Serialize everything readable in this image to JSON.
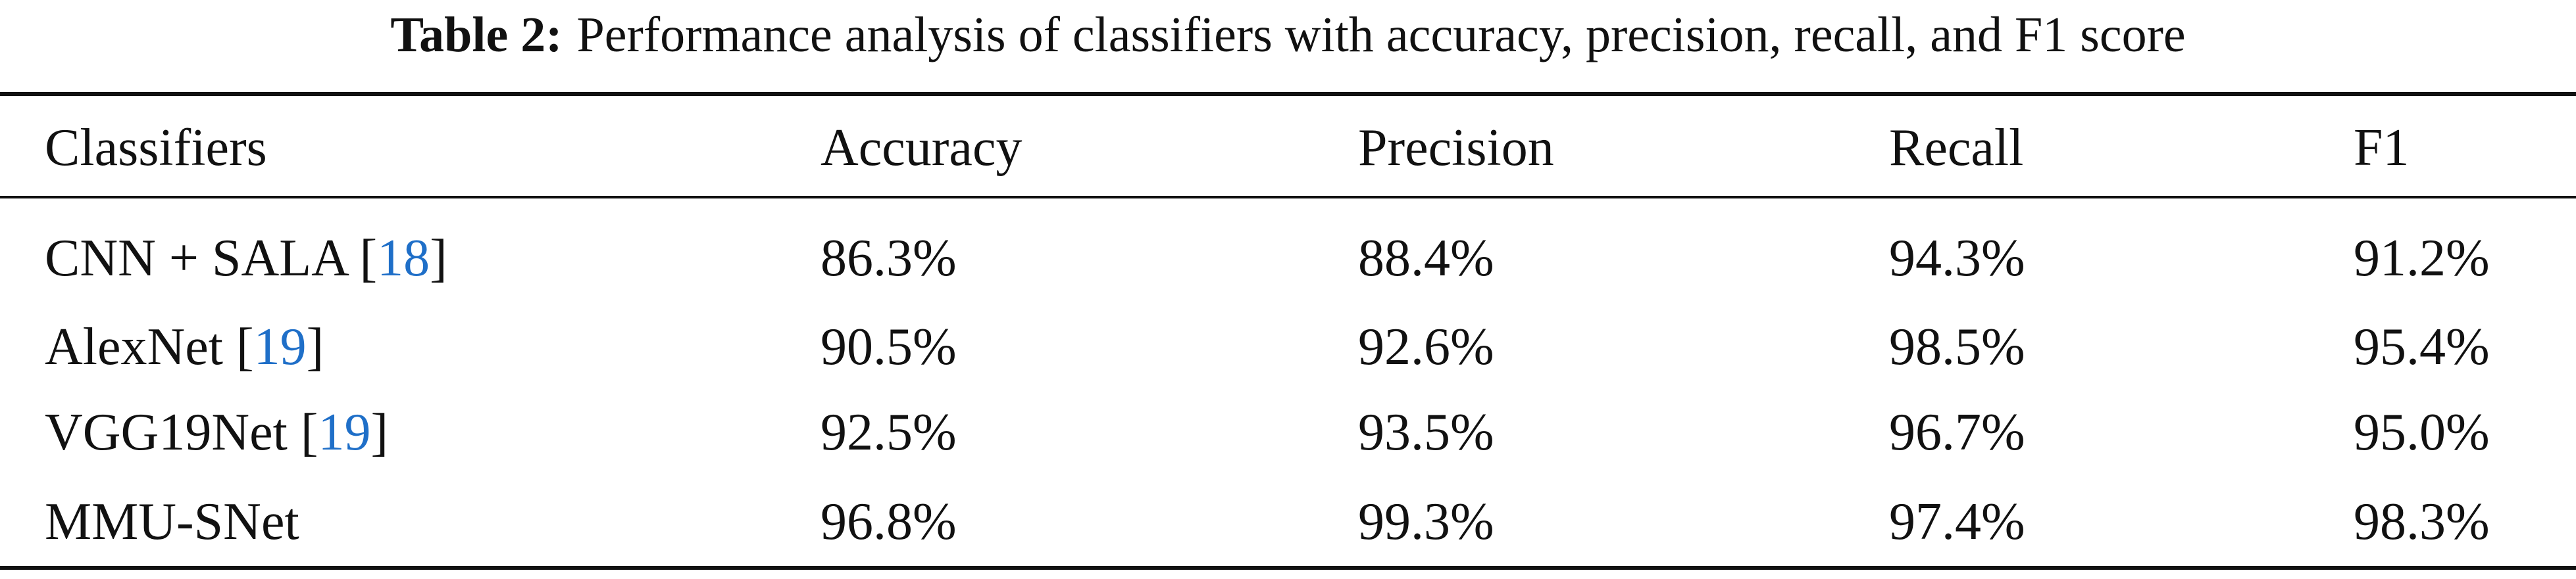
{
  "table": {
    "caption": {
      "label": "Table 2:",
      "text": "Performance analysis of classifiers with accuracy, precision, recall, and F1 score"
    },
    "header": [
      "Classifiers",
      "Accuracy",
      "Precision",
      "Recall",
      "F1"
    ],
    "rows": [
      [
        {
          "before": "CNN + SALA [",
          "ref": "18",
          "after": "]"
        },
        "86.3%",
        "88.4%",
        "94.3%",
        "91.2%"
      ],
      [
        {
          "before": "AlexNet [",
          "ref": "19",
          "after": "]"
        },
        "90.5%",
        "92.6%",
        "98.5%",
        "95.4%"
      ],
      [
        {
          "before": "VGG19Net [",
          "ref": "19",
          "after": "]"
        },
        "92.5%",
        "93.5%",
        "96.7%",
        "95.0%"
      ],
      [
        {
          "before": "MMU-SNet",
          "ref": null,
          "after": null
        },
        "96.8%",
        "99.3%",
        "97.4%",
        "98.3%"
      ]
    ]
  }
}
